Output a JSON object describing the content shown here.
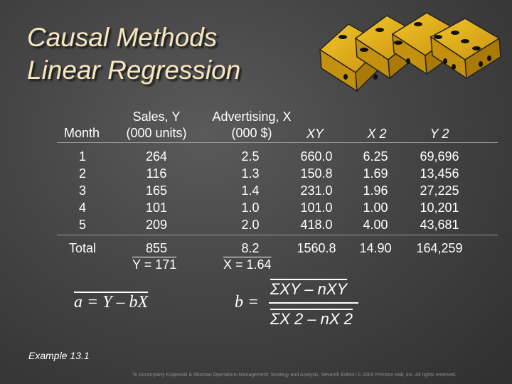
{
  "title_line1": "Causal Methods",
  "title_line2": "Linear Regression",
  "headers": {
    "month": "Month",
    "sales_line1": "Sales, Y",
    "sales_line2": "(000 units)",
    "adv_line1": "Advertising, X",
    "adv_line2": "(000 $)",
    "xy": "XY",
    "x2": "X 2",
    "y2": "Y 2"
  },
  "table": {
    "month": [
      "1",
      "2",
      "3",
      "4",
      "5"
    ],
    "sales": [
      "264",
      "116",
      "165",
      "101",
      "209"
    ],
    "advertising": [
      "2.5",
      "1.3",
      "1.4",
      "1.0",
      "2.0"
    ],
    "xy": [
      "660.0",
      "150.8",
      "231.0",
      "101.0",
      "418.0"
    ],
    "x2": [
      "6.25",
      "1.69",
      "1.96",
      "1.00",
      "4.00"
    ],
    "y2": [
      "69,696",
      "13,456",
      "27,225",
      "10,201",
      "43,681"
    ]
  },
  "totals": {
    "label": "Total",
    "sales": "855",
    "advertising": "8.2",
    "xy": "1560.8",
    "x2": "14.90",
    "y2": "164,259"
  },
  "means": {
    "y": "Y = 171",
    "x": "X = 1.64"
  },
  "formula_a": "a = Y – bX",
  "formula_b_label": "b =",
  "formula_b_num": "ΣXY – nXY",
  "formula_b_den": "ΣX 2 – nX 2",
  "example": "Example 13.1",
  "footer": "To Accompany Krajewski & Ritzman Operations Management: Strategy and Analysis, Seventh Edition © 2004 Prentice Hall, Inc. All rights reserved."
}
